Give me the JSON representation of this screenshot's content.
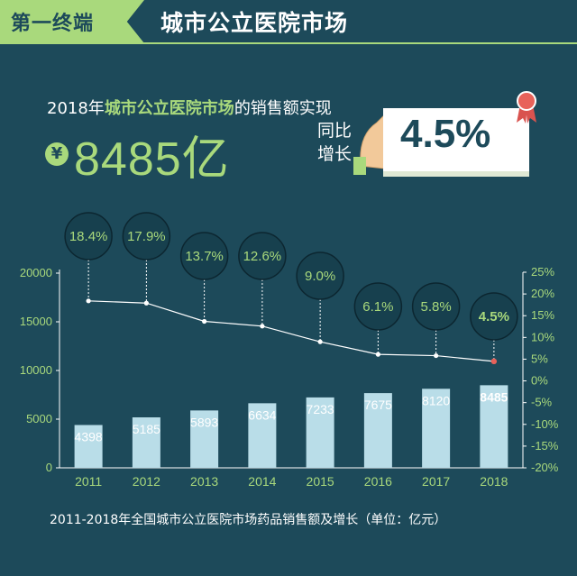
{
  "header": {
    "tab_label": "第一终端",
    "title": "城市公立医院市场"
  },
  "headline": {
    "prefix": "2018年",
    "highlight": "城市公立医院市场",
    "suffix": "的销售额实现"
  },
  "amount": {
    "currency_symbol": "¥",
    "value": "8485亿"
  },
  "growth": {
    "label_line1": "同比",
    "label_line2": "增长",
    "value": "4.5%"
  },
  "caption": "2011-2018年全国城市公立医院市场药品销售额及增长（单位：亿元）",
  "colors": {
    "background": "#1d4a5a",
    "accent": "#a9d97c",
    "bar": "#b9dde8",
    "line": "#ffffff"
  },
  "chart_data": {
    "type": "bar",
    "categories": [
      "2011",
      "2012",
      "2013",
      "2014",
      "2015",
      "2016",
      "2017",
      "2018"
    ],
    "series": [
      {
        "values": [
          4398,
          5185,
          5893,
          6634,
          7233,
          7675,
          8120,
          8485
        ],
        "labels": [
          "4398",
          "5185",
          "5893",
          "6634",
          "7233",
          "7675",
          "8120",
          "8485"
        ],
        "type": "bar",
        "axis": "left"
      },
      {
        "values": [
          18.4,
          17.9,
          13.7,
          12.6,
          9.0,
          6.1,
          5.8,
          4.5
        ],
        "labels": [
          "18.4%",
          "17.9%",
          "13.7%",
          "12.6%",
          "9.0%",
          "6.1%",
          "5.8%",
          "4.5%"
        ],
        "type": "line",
        "axis": "right"
      }
    ],
    "y_left": {
      "ylim": [
        0,
        20000
      ],
      "ticks": [
        "0",
        "5000",
        "10000",
        "15000",
        "20000"
      ]
    },
    "y_right": {
      "ylim": [
        -20,
        25
      ],
      "ticks": [
        "25%",
        "20%",
        "15%",
        "10%",
        "5%",
        "0%",
        "-5%",
        "-10%",
        "-15%",
        "-20%"
      ]
    },
    "grid": false
  }
}
